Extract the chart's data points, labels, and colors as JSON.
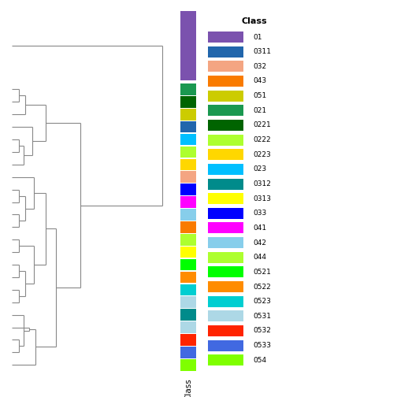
{
  "classes": [
    "01",
    "0311",
    "032",
    "043",
    "051",
    "021",
    "0221",
    "0222",
    "0223",
    "023",
    "0312",
    "0313",
    "033",
    "041",
    "042",
    "044",
    "0521",
    "0522",
    "0523",
    "0531",
    "0532",
    "0533",
    "054"
  ],
  "class_colors": {
    "01": "#7B52AE",
    "0311": "#2166AC",
    "032": "#F4A582",
    "043": "#F97B00",
    "051": "#CCCC00",
    "021": "#1A9850",
    "0221": "#006400",
    "0222": "#ADFF2F",
    "0223": "#FFD700",
    "023": "#00BFFF",
    "0312": "#008B8B",
    "0313": "#FFFF00",
    "033": "#0000FF",
    "041": "#FF00FF",
    "042": "#87CEEB",
    "044": "#ADFF2F",
    "0521": "#00FF00",
    "0522": "#FF8C00",
    "0523": "#00CED1",
    "0531": "#ADD8E6",
    "0532": "#FF2400",
    "0533": "#4169E1",
    "054": "#7FFF00"
  },
  "leaf_colors_top_to_bottom": [
    "#7B52AE",
    "#1A9850",
    "#006400",
    "#CCCC00",
    "#2166AC",
    "#00BFFF",
    "#ADFF2F",
    "#FFD700",
    "#F4A582",
    "#0000FF",
    "#FF00FF",
    "#87CEEB",
    "#F97B00",
    "#ADFF2F",
    "#FFFF00",
    "#00FF00",
    "#FF8C00",
    "#00CED1",
    "#ADD8E6",
    "#008B8B",
    "#ADD8E6",
    "#FF2400",
    "#4169E1",
    "#7FFF00"
  ],
  "fig_width": 5.04,
  "fig_height": 5.04,
  "dpi": 100
}
